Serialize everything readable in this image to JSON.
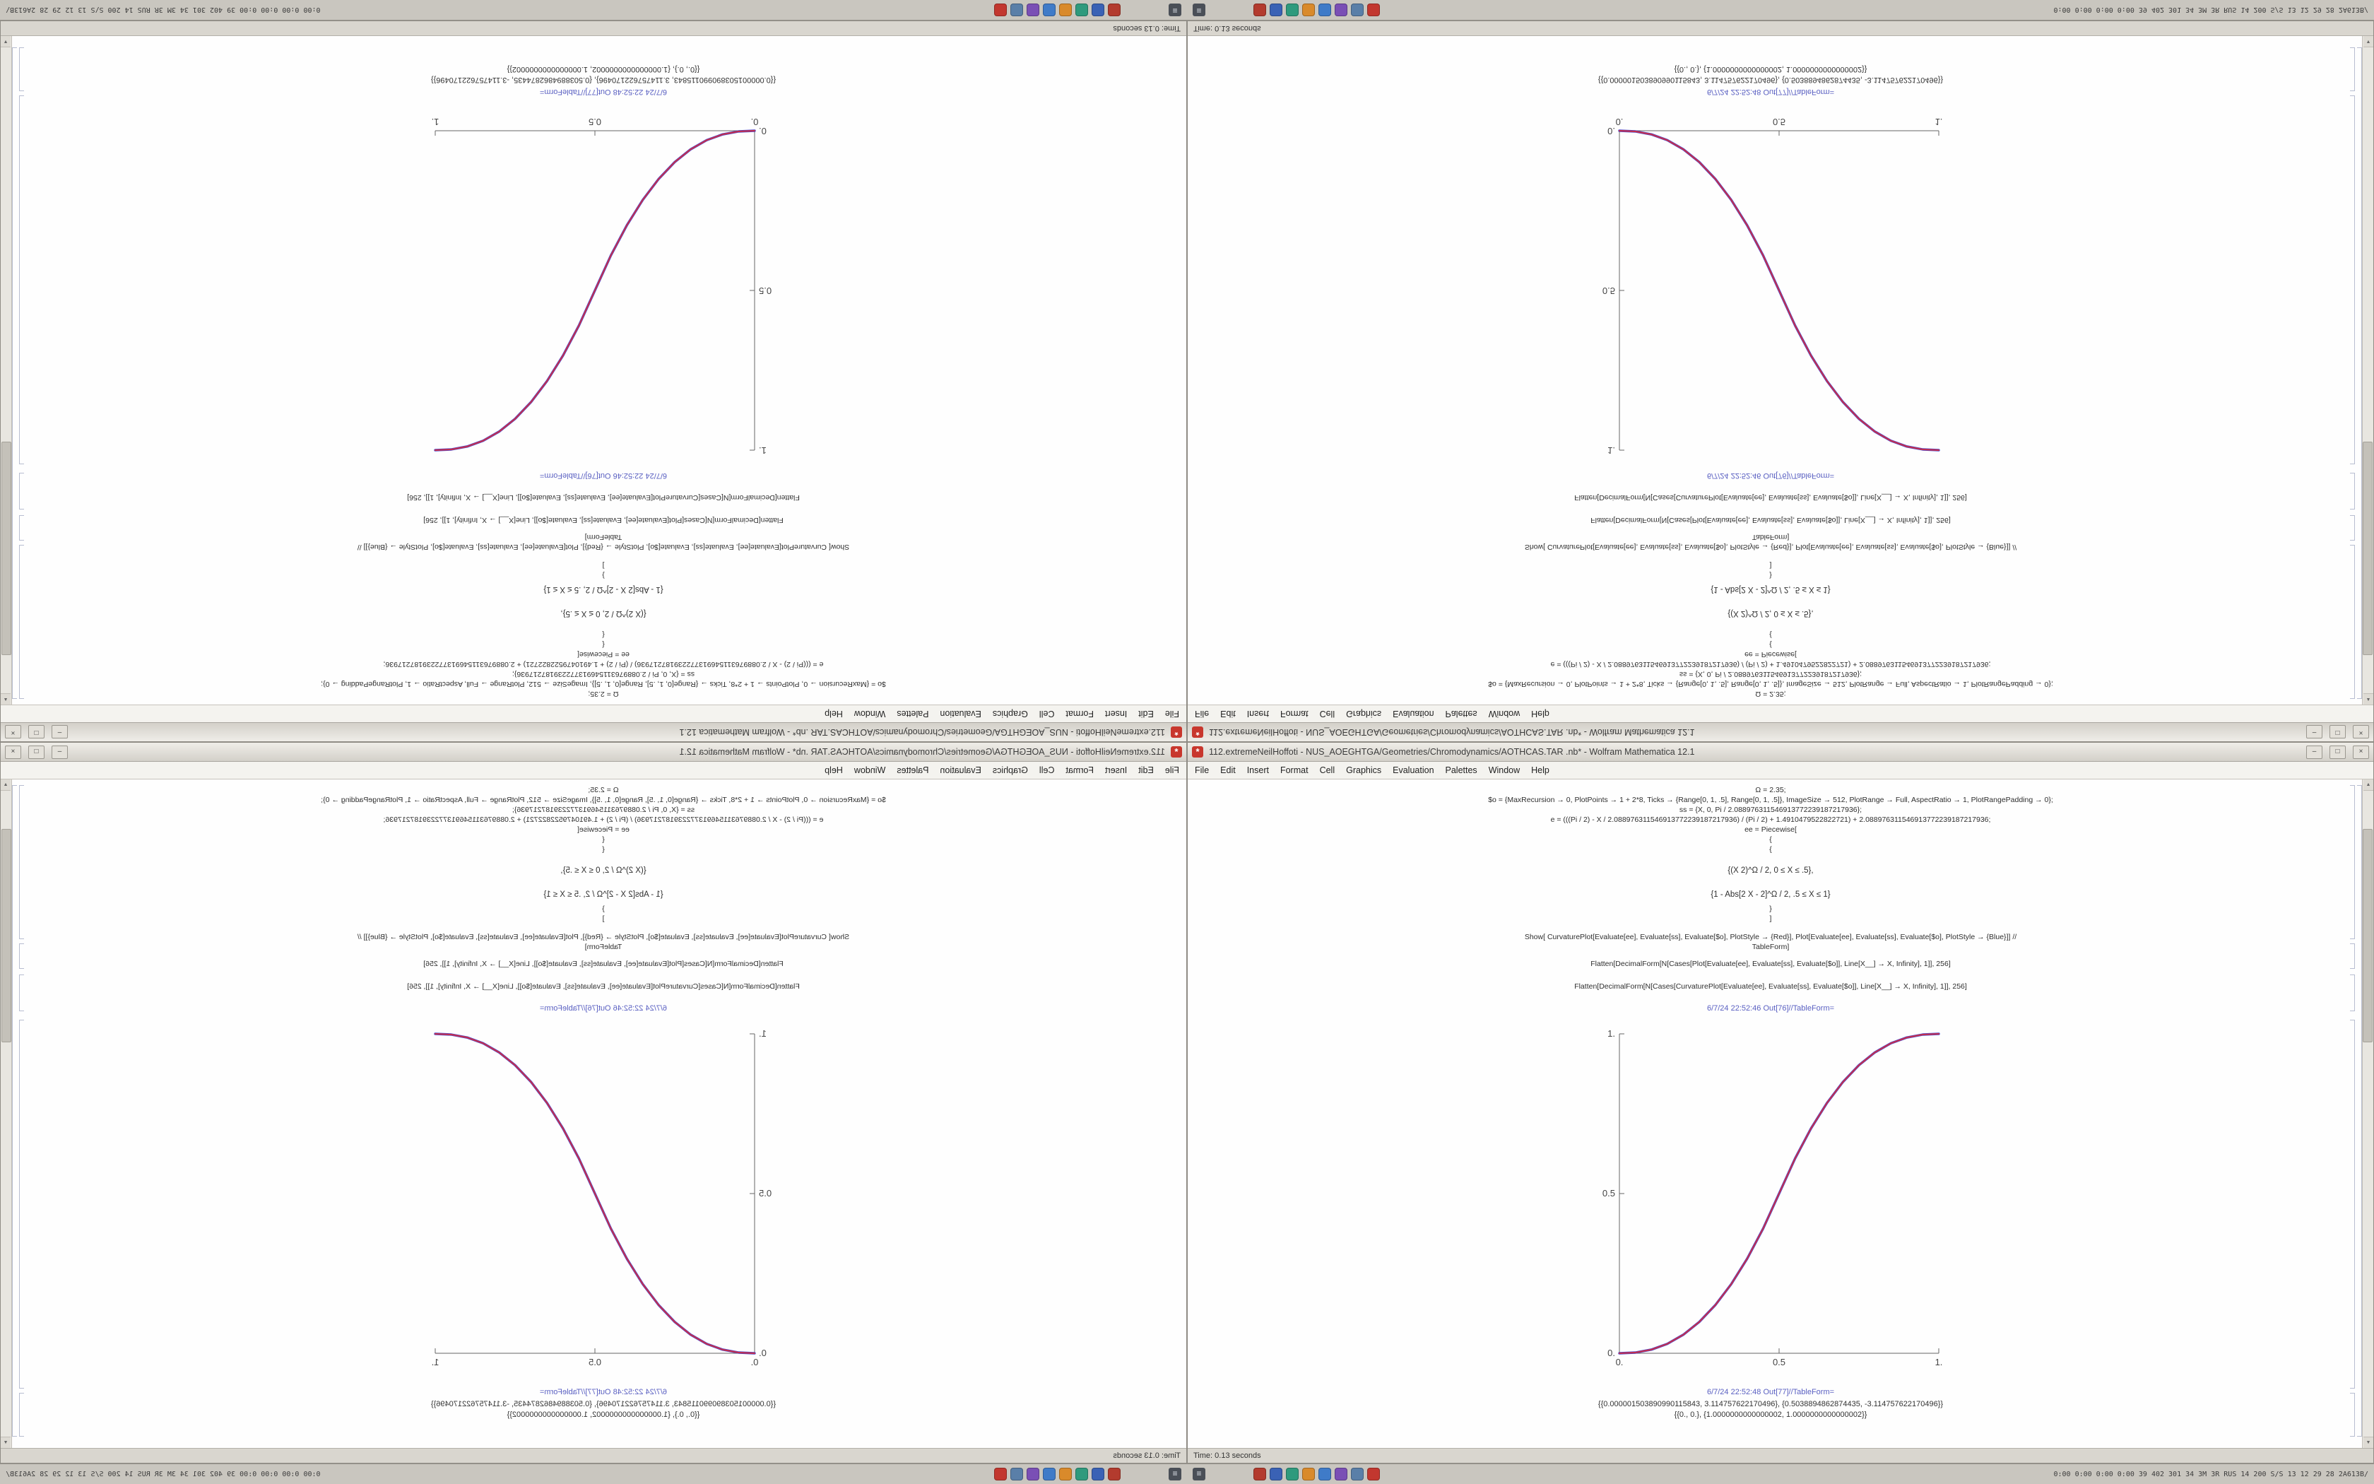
{
  "window": {
    "title": "112.extremeNeilHoffoti - NUS_AOEGHTGA/Geometries/Chromodynamics/AOTHCAS.TAR .nb* - Wolfram Mathematica 12.1",
    "icon_glyph": "*",
    "controls": {
      "minimize": "–",
      "maximize": "□",
      "close": "×"
    },
    "menu": [
      "File",
      "Edit",
      "Insert",
      "Format",
      "Cell",
      "Graphics",
      "Evaluation",
      "Palettes",
      "Window",
      "Help"
    ],
    "status": "Time: 0.13 seconds"
  },
  "scrollbar": {
    "up": "▲",
    "down": "▼"
  },
  "notebook": {
    "input_lines": [
      {
        "text": "Ω = 2.35;",
        "cls": ""
      },
      {
        "text": "$o = {MaxRecursion → 0, PlotPoints → 1 + 2*8, Ticks → {Range[0, 1, .5], Range[0, 1, .5]}, ImageSize → 512, PlotRange → Full, AspectRatio → 1, PlotRangePadding → 0};",
        "cls": ""
      },
      {
        "text": "ss = {X, 0, Pi / 2.088976311546913772239187217936};",
        "cls": ""
      },
      {
        "text": "e = (((Pi / 2) - X / 2.088976311546913772239187217936) / (Pi / 2) + 1.4910479522822721) + 2.088976311546913772239187217936;",
        "cls": ""
      },
      {
        "text": "ee = Piecewise[",
        "cls": ""
      },
      {
        "text": "{",
        "cls": ""
      },
      {
        "text": "{",
        "cls": ""
      },
      {
        "text": "{(X 2)^Ω / 2, 0 ≤ X ≤ .5},",
        "cls": "pw1"
      },
      {
        "text": "{1 - Abs[2 X - 2]^Ω / 2, .5 ≤ X ≤ 1}",
        "cls": "pw2"
      },
      {
        "text": "}",
        "cls": ""
      },
      {
        "text": "]",
        "cls": ""
      }
    ],
    "show_lines": [
      "Show[ CurvaturePlot[Evaluate[ee], Evaluate[ss], Evaluate[$o], PlotStyle → {Red}], Plot[Evaluate[ee], Evaluate[ss], Evaluate[$o], PlotStyle → {Blue}]] //",
      "TableForm]"
    ],
    "flatten_lines": [
      "Flatten[DecimalForm[N[Cases[Plot[Evaluate[ee], Evaluate[ss], Evaluate[$o]], Line[X__] → X, Infinity], 1]], 256]",
      "Flatten[DecimalForm[N[Cases[CurvaturePlot[Evaluate[ee], Evaluate[ss], Evaluate[$o]], Line[X__] → X, Infinity], 1]], 256]"
    ],
    "out_label_plot": "6/7/24 22:52:46 Out[76]//TableForm=",
    "out_label_table": "6/7/24 22:52:48 Out[77]//TableForm=",
    "table_rows": [
      "{{0.000001503890990115843, 3.114757622170496}, {0.5038894862874435, -3.114757622170496}}",
      "{{0., 0.}, {1.0000000000000002, 1.0000000000000002}}"
    ]
  },
  "chart_data": {
    "type": "line",
    "title": "",
    "xlabel": "",
    "ylabel": "",
    "xlim": [
      0,
      1
    ],
    "ylim": [
      0,
      1
    ],
    "x": [
      0,
      0.05,
      0.1,
      0.15,
      0.2,
      0.25,
      0.3,
      0.35,
      0.4,
      0.45,
      0.5,
      0.55,
      0.6,
      0.65,
      0.7,
      0.75,
      0.8,
      0.85,
      0.9,
      0.95,
      1
    ],
    "series": [
      {
        "name": "CurvaturePlot (Red)",
        "color": "#d42a3c",
        "values": [
          0,
          0.0022,
          0.0114,
          0.0295,
          0.058,
          0.0981,
          0.1505,
          0.2163,
          0.296,
          0.3903,
          0.5,
          0.6097,
          0.704,
          0.7837,
          0.8495,
          0.9019,
          0.942,
          0.9705,
          0.9886,
          0.9978,
          1
        ]
      },
      {
        "name": "Plot (Blue)",
        "color": "#3a36c8",
        "values": [
          0,
          0.0022,
          0.0114,
          0.0295,
          0.058,
          0.0981,
          0.1505,
          0.2163,
          0.296,
          0.3903,
          0.5,
          0.6097,
          0.704,
          0.7837,
          0.8495,
          0.9019,
          0.942,
          0.9705,
          0.9886,
          0.9978,
          1
        ]
      }
    ],
    "xticks": [
      {
        "v": 0,
        "label": "0."
      },
      {
        "v": 0.5,
        "label": "0.5"
      },
      {
        "v": 1,
        "label": "1."
      }
    ],
    "yticks": [
      {
        "v": 0,
        "label": "0."
      },
      {
        "v": 0.5,
        "label": "0.5"
      },
      {
        "v": 1,
        "label": "1."
      }
    ],
    "grid": false,
    "legend": "none"
  },
  "taskbar": {
    "start_glyph": "≡",
    "icons": [
      {
        "name": "terminal-icon",
        "color": "#b33b2e"
      },
      {
        "name": "browser-icon",
        "color": "#3a62b5"
      },
      {
        "name": "files-icon",
        "color": "#2f9a7d"
      },
      {
        "name": "editor-icon",
        "color": "#d98a2b"
      },
      {
        "name": "mail-icon",
        "color": "#3f7bc8"
      },
      {
        "name": "media-icon",
        "color": "#7a4fb5"
      },
      {
        "name": "settings-icon",
        "color": "#5a7fa8"
      },
      {
        "name": "mathematica-icon",
        "color": "#c2372f"
      }
    ],
    "tray_text": "0:00 0:00 0:00 0:00 39 402 301 34 3M 3R RUS 14 200 S/S 13 12 29 28 2A613B/"
  }
}
